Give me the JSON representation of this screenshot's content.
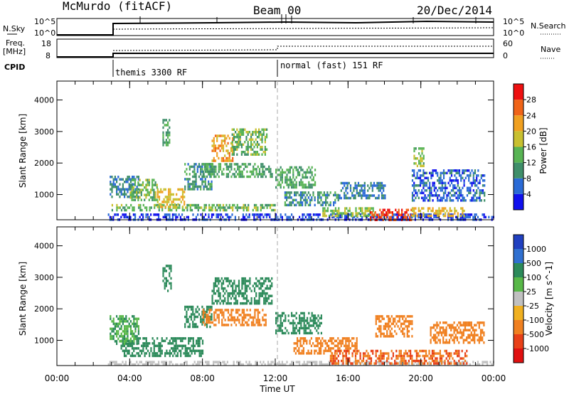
{
  "header": {
    "title": "McMurdo (fitACF)",
    "beam": "Beam 00",
    "date": "20/Dec/2014"
  },
  "summary_panels": {
    "nsky_label": "N.Sky",
    "nsky_ticks": [
      "10^5",
      "10^0"
    ],
    "nsearch_label": "N.Search",
    "nsearch_ticks": [
      "10^5",
      "10^0"
    ],
    "freq_label": "Freq.",
    "freq_unit": "[MHz]",
    "freq_ticks": [
      "18",
      "8"
    ],
    "nave_label": "Nave",
    "nave_ticks": [
      "60",
      "0"
    ],
    "cpid_label": "CPID",
    "cpid_modes": [
      {
        "label": "themis 3300 RF",
        "start_hour": 2.75
      },
      {
        "label": "normal (fast) 151 RF",
        "start_hour": 12.0
      }
    ]
  },
  "x_axis": {
    "label": "Time UT",
    "ticks": [
      "00:00",
      "04:00",
      "08:00",
      "12:00",
      "16:00",
      "20:00",
      "00:00"
    ],
    "range_hours": [
      0,
      24
    ]
  },
  "colors": {
    "power": [
      "#1010ee",
      "#2a6ad6",
      "#3f8f6a",
      "#58b454",
      "#c8c030",
      "#f0a020",
      "#f06418",
      "#ee1010"
    ],
    "velocity": [
      "#2040c0",
      "#3070d0",
      "#2c8a5a",
      "#58b848",
      "#c0c0c0",
      "#f0b020",
      "#f08020",
      "#e84018",
      "#e01010"
    ]
  },
  "chart_data": [
    {
      "type": "heatmap",
      "ylabel": "Slant Range [km]",
      "yticks": [
        "1000",
        "2000",
        "3000",
        "4000"
      ],
      "ylim": [
        200,
        4600
      ],
      "xlim": [
        0,
        24
      ],
      "colorbar": {
        "label": "Power [dB]",
        "ticks": [
          "4",
          "8",
          "12",
          "16",
          "20",
          "24",
          "28"
        ],
        "range": [
          0,
          32
        ]
      },
      "blobs": [
        {
          "t0": 2.8,
          "t1": 24.0,
          "r0": 200,
          "r1": 400,
          "v": 4
        },
        {
          "t0": 3.0,
          "t1": 12.0,
          "r0": 500,
          "r1": 700,
          "v": 14
        },
        {
          "t0": 5.5,
          "t1": 7.0,
          "r0": 600,
          "r1": 1200,
          "v": 20
        },
        {
          "t0": 2.9,
          "t1": 4.5,
          "r0": 900,
          "r1": 1600,
          "v": 8
        },
        {
          "t0": 4.0,
          "t1": 5.5,
          "r0": 800,
          "r1": 1500,
          "v": 14
        },
        {
          "t0": 7.0,
          "t1": 8.5,
          "r0": 1200,
          "r1": 2000,
          "v": 10
        },
        {
          "t0": 8.5,
          "t1": 9.7,
          "r0": 2100,
          "r1": 2900,
          "v": 22
        },
        {
          "t0": 9.6,
          "t1": 11.5,
          "r0": 2300,
          "r1": 3100,
          "v": 14
        },
        {
          "t0": 8.0,
          "t1": 11.8,
          "r0": 1600,
          "r1": 2000,
          "v": 12
        },
        {
          "t0": 12.0,
          "t1": 14.2,
          "r0": 1200,
          "r1": 1900,
          "v": 12
        },
        {
          "t0": 12.5,
          "t1": 15.5,
          "r0": 700,
          "r1": 1100,
          "v": 10
        },
        {
          "t0": 14.5,
          "t1": 17.5,
          "r0": 300,
          "r1": 600,
          "v": 16
        },
        {
          "t0": 17.2,
          "t1": 19.5,
          "r0": 200,
          "r1": 550,
          "v": 28
        },
        {
          "t0": 19.5,
          "t1": 22.5,
          "r0": 300,
          "r1": 600,
          "v": 20
        },
        {
          "t0": 15.5,
          "t1": 18.0,
          "r0": 900,
          "r1": 1400,
          "v": 8
        },
        {
          "t0": 19.5,
          "t1": 23.5,
          "r0": 800,
          "r1": 1800,
          "v": 6
        },
        {
          "t0": 5.8,
          "t1": 6.2,
          "r0": 2600,
          "r1": 3400,
          "v": 12
        },
        {
          "t0": 19.6,
          "t1": 20.2,
          "r0": 1900,
          "r1": 2500,
          "v": 14
        }
      ]
    },
    {
      "type": "heatmap",
      "ylabel": "Slant Range [km]",
      "yticks": [
        "1000",
        "2000",
        "3000",
        "4000"
      ],
      "ylim": [
        200,
        4600
      ],
      "xlim": [
        0,
        24
      ],
      "colorbar": {
        "label": "Velocity [m s^-1]",
        "ticks": [
          "1000",
          "500",
          "100",
          "25",
          "-25",
          "-100",
          "-500",
          "-1000"
        ]
      },
      "blobs": [
        {
          "t0": 2.8,
          "t1": 24.0,
          "r0": 200,
          "r1": 350,
          "v": 0
        },
        {
          "t0": 3.5,
          "t1": 8.0,
          "r0": 500,
          "r1": 1100,
          "v": 150
        },
        {
          "t0": 2.9,
          "t1": 4.5,
          "r0": 900,
          "r1": 1800,
          "v": 60
        },
        {
          "t0": 7.0,
          "t1": 8.5,
          "r0": 1400,
          "r1": 2100,
          "v": 200
        },
        {
          "t0": 8.5,
          "t1": 11.8,
          "r0": 2200,
          "r1": 3000,
          "v": 200
        },
        {
          "t0": 8.0,
          "t1": 11.5,
          "r0": 1500,
          "r1": 2000,
          "v": -150
        },
        {
          "t0": 12.0,
          "t1": 14.5,
          "r0": 1200,
          "r1": 1900,
          "v": 120
        },
        {
          "t0": 13.0,
          "t1": 16.5,
          "r0": 600,
          "r1": 1100,
          "v": -200
        },
        {
          "t0": 15.0,
          "t1": 22.5,
          "r0": 300,
          "r1": 700,
          "v": -300
        },
        {
          "t0": 17.5,
          "t1": 19.5,
          "r0": 1100,
          "r1": 1800,
          "v": -200
        },
        {
          "t0": 20.5,
          "t1": 23.5,
          "r0": 900,
          "r1": 1600,
          "v": -150
        },
        {
          "t0": 5.8,
          "t1": 6.3,
          "r0": 2600,
          "r1": 3400,
          "v": 150
        }
      ]
    }
  ]
}
